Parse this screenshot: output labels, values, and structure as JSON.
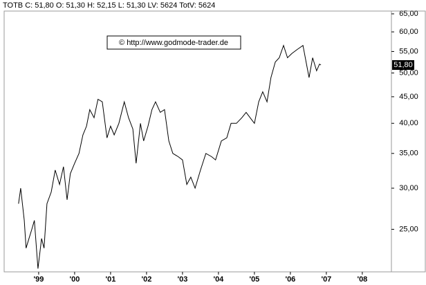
{
  "chart_data": {
    "type": "line",
    "header": "TOTB C: 51,80 O: 51,30 H: 52,15 L: 51,30 LV: 5624 TotV: 5624",
    "watermark": "© http://www.godmode-trader.de",
    "log_scale": true,
    "color": "#000000",
    "x": [
      1998.44,
      1998.5,
      1998.6,
      1998.65,
      1998.73,
      1998.81,
      1998.88,
      1998.98,
      1999.08,
      1999.15,
      1999.23,
      1999.35,
      1999.46,
      1999.58,
      1999.69,
      1999.79,
      1999.88,
      2000.0,
      2000.12,
      2000.23,
      2000.33,
      2000.42,
      2000.54,
      2000.65,
      2000.77,
      2000.9,
      2001.0,
      2001.1,
      2001.23,
      2001.38,
      2001.5,
      2001.62,
      2001.71,
      2001.83,
      2001.92,
      2002.04,
      2002.15,
      2002.25,
      2002.38,
      2002.5,
      2002.62,
      2002.73,
      2002.88,
      2003.0,
      2003.12,
      2003.23,
      2003.35,
      2003.5,
      2003.65,
      2003.81,
      2003.92,
      2004.08,
      2004.23,
      2004.35,
      2004.5,
      2004.65,
      2004.77,
      2004.88,
      2005.0,
      2005.12,
      2005.23,
      2005.35,
      2005.46,
      2005.58,
      2005.69,
      2005.81,
      2005.92,
      2006.04,
      2006.19,
      2006.35,
      2006.46,
      2006.52,
      2006.62,
      2006.73,
      2006.81,
      2006.85
    ],
    "values": [
      28,
      30,
      26,
      23,
      24,
      25,
      26,
      21,
      24,
      23,
      28,
      29.5,
      32.5,
      30.5,
      33,
      28.5,
      32,
      33.5,
      35,
      38,
      39.5,
      42.5,
      41,
      44.5,
      44,
      37.5,
      39.5,
      38,
      40,
      44,
      41,
      39,
      33.5,
      40,
      37,
      39.5,
      42.5,
      44,
      42,
      42.5,
      37,
      35,
      34.5,
      34,
      30.5,
      31.5,
      30,
      32.5,
      35,
      34.5,
      34,
      37,
      37.5,
      40,
      40,
      41,
      42,
      41,
      40,
      44,
      46,
      44,
      49,
      52.5,
      53.5,
      56.5,
      53.5,
      54.5,
      55.5,
      56.5,
      51.5,
      49,
      53.5,
      50.5,
      52,
      51.8
    ],
    "last_price": {
      "value": 51.8,
      "label": "51,80"
    },
    "xlim": [
      1998.04,
      2008.81
    ],
    "xticks": [
      {
        "value": 1999,
        "label": "'99"
      },
      {
        "value": 2000,
        "label": "'00"
      },
      {
        "value": 2001,
        "label": "'01"
      },
      {
        "value": 2002,
        "label": "'02"
      },
      {
        "value": 2003,
        "label": "'03"
      },
      {
        "value": 2004,
        "label": "'04"
      },
      {
        "value": 2005,
        "label": "'05"
      },
      {
        "value": 2006,
        "label": "'06"
      },
      {
        "value": 2007,
        "label": "'07"
      },
      {
        "value": 2008,
        "label": "'08"
      }
    ],
    "ylim": [
      20.7,
      65.8
    ],
    "yticks": [
      {
        "value": 25,
        "label": "25,00"
      },
      {
        "value": 30,
        "label": "30,00"
      },
      {
        "value": 35,
        "label": "35,00"
      },
      {
        "value": 40,
        "label": "40,00"
      },
      {
        "value": 45,
        "label": "45,00"
      },
      {
        "value": 50,
        "label": "50,00"
      },
      {
        "value": 55,
        "label": "55,00"
      },
      {
        "value": 60,
        "label": "60,00"
      },
      {
        "value": 65,
        "label": "65,00"
      }
    ]
  }
}
